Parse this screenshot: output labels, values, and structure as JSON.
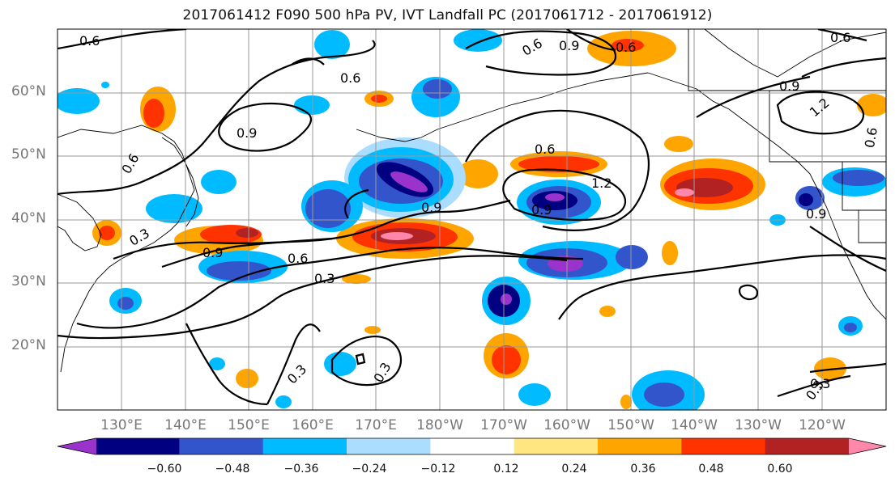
{
  "title": "2017061412 F090 500 hPa PV, IVT Landfall PC (2017061712 - 2017061912)",
  "lat_labels": [
    "60°N",
    "50°N",
    "40°N",
    "30°N",
    "20°N"
  ],
  "lon_labels": [
    "130°E",
    "140°E",
    "150°E",
    "160°E",
    "170°E",
    "180°W",
    "170°W",
    "160°W",
    "150°W",
    "140°W",
    "130°W",
    "120°W"
  ],
  "colorbar": {
    "colors": [
      "#9933cc",
      "#000080",
      "#3355cc",
      "#00bbff",
      "#aaddff",
      "#ffffff",
      "#ffe680",
      "#ffa500",
      "#ff3300",
      "#b22222",
      "#ff88aa"
    ],
    "labels": [
      "−0.60",
      "−0.48",
      "−0.36",
      "−0.24",
      "−0.12",
      "0.12",
      "0.24",
      "0.36",
      "0.48",
      "0.60"
    ]
  },
  "contour_labels": [
    "0.6",
    "0.6",
    "0.9",
    "0.6",
    "0.3",
    "0.9",
    "0.6",
    "0.3",
    "0.9",
    "0.6",
    "1.2",
    "0.9",
    "0.6",
    "0.9",
    "0.6",
    "1.2",
    "0.9",
    "0.6",
    "0.9",
    "0.3",
    "0.3",
    "0.3",
    "0.3",
    "0.6"
  ]
}
